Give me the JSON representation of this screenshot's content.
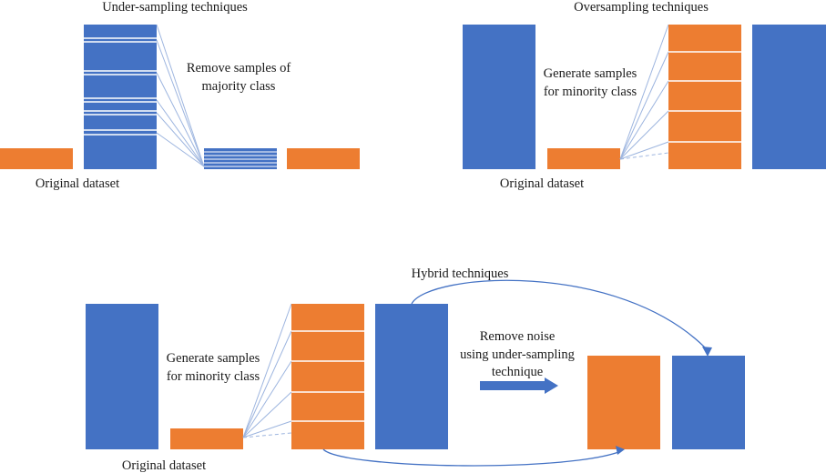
{
  "panels": {
    "under_sampling": {
      "title": "Under-sampling techniques",
      "annotation_line1": "Remove samples of",
      "annotation_line2": "majority class",
      "caption": "Original dataset"
    },
    "oversampling": {
      "title": "Oversampling techniques",
      "annotation_line1": "Generate samples",
      "annotation_line2": "for minority class",
      "caption": "Original dataset"
    },
    "hybrid": {
      "title": "Hybrid techniques",
      "annotation_line1": "Generate samples",
      "annotation_line2": "for minority class",
      "noise_line1": "Remove noise",
      "noise_line2": "using under-sampling",
      "noise_line3": "technique",
      "caption": "Original dataset"
    }
  },
  "colors": {
    "majority": "#4472c4",
    "minority": "#ed7d31"
  }
}
